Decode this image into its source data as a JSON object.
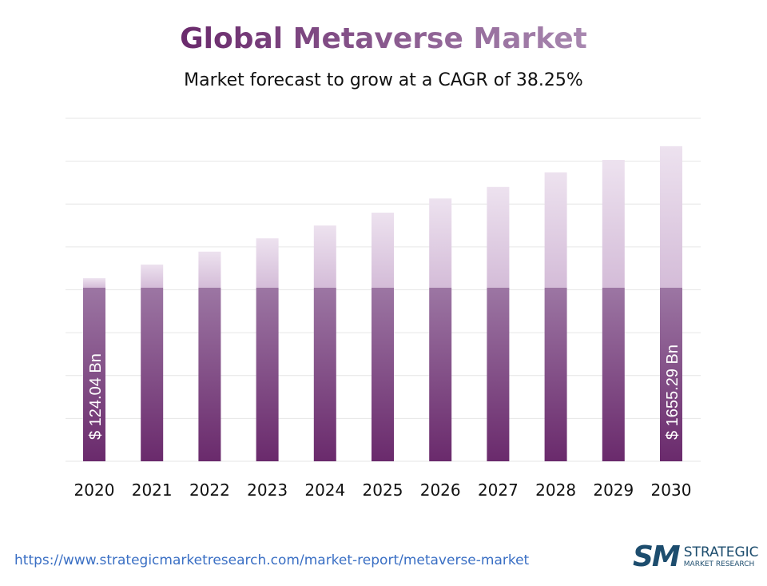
{
  "title": "Global Metaverse Market",
  "subtitle": "Market forecast to grow at a CAGR of 38.25%",
  "url": "https://www.strategicmarketresearch.com/market-report/metaverse-market",
  "logo": {
    "mark": "SM",
    "line1": "STRATEGIC",
    "line2": "MARKET RESEARCH"
  },
  "colors": {
    "dark": "#6a2a6c",
    "light": "#e6d6e8",
    "grid": "#e6e6e6"
  },
  "chart_data": {
    "type": "bar",
    "categories": [
      "2020",
      "2021",
      "2022",
      "2023",
      "2024",
      "2025",
      "2026",
      "2027",
      "2028",
      "2029",
      "2030"
    ],
    "values": [
      4.27,
      4.59,
      4.89,
      5.2,
      5.5,
      5.8,
      6.13,
      6.4,
      6.74,
      7.03,
      7.35
    ],
    "base_segment": 4.05,
    "ylim": [
      0,
      8
    ],
    "grid": true,
    "annotations": [
      {
        "category": "2020",
        "text": "$ 124.04 Bn"
      },
      {
        "category": "2030",
        "text": "$ 1655.29 Bn"
      }
    ]
  }
}
